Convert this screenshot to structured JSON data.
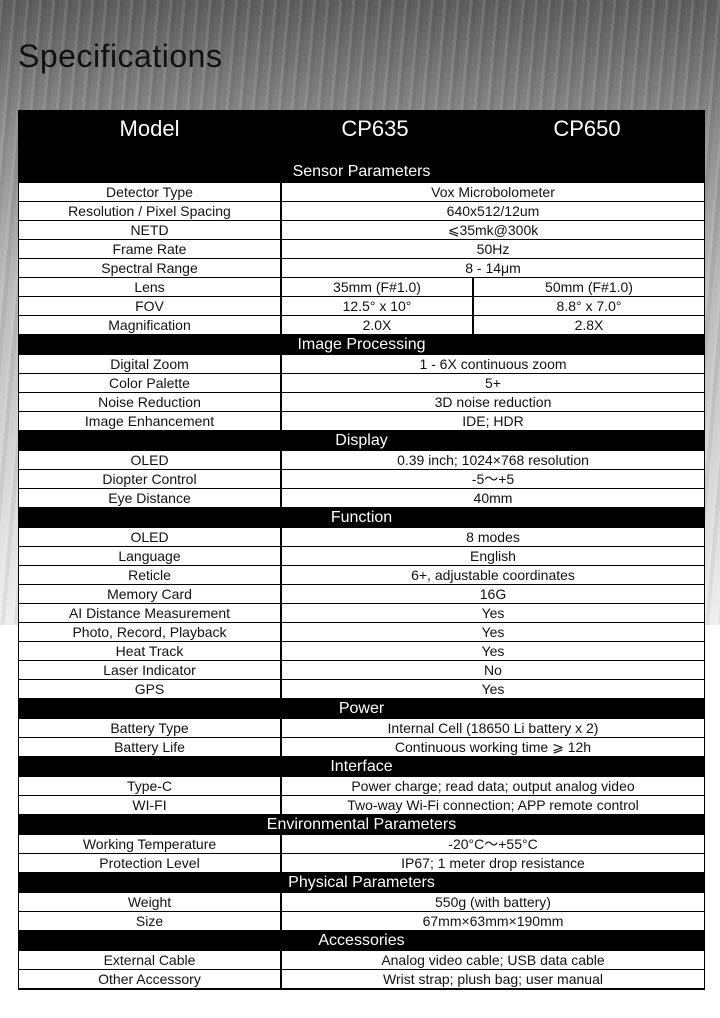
{
  "title": "Specifications",
  "header": {
    "model": "Model",
    "cp635": "CP635",
    "cp650": "CP650"
  },
  "sections": [
    {
      "title": "Sensor Parameters",
      "rows": [
        {
          "label": "Detector Type",
          "value": "Vox Microbolometer"
        },
        {
          "label": "Resolution / Pixel Spacing",
          "value": "640x512/12um"
        },
        {
          "label": "NETD",
          "value": "⩽35mk@300k"
        },
        {
          "label": "Frame Rate",
          "value": "50Hz"
        },
        {
          "label": "Spectral Range",
          "value": "8 - 14μm"
        },
        {
          "label": "Lens",
          "cp635": "35mm (F#1.0)",
          "cp650": "50mm (F#1.0)"
        },
        {
          "label": "FOV",
          "cp635": "12.5° x 10°",
          "cp650": "8.8° x 7.0°"
        },
        {
          "label": "Magnification",
          "cp635": "2.0X",
          "cp650": "2.8X"
        }
      ]
    },
    {
      "title": "Image Processing",
      "rows": [
        {
          "label": "Digital Zoom",
          "value": "1 - 6X continuous zoom"
        },
        {
          "label": "Color Palette",
          "value": "5+"
        },
        {
          "label": "Noise Reduction",
          "value": "3D noise reduction"
        },
        {
          "label": "Image Enhancement",
          "value": "IDE; HDR"
        }
      ]
    },
    {
      "title": "Display",
      "rows": [
        {
          "label": "OLED",
          "value": "0.39 inch; 1024×768 resolution"
        },
        {
          "label": "Diopter Control",
          "value": "-5～+5"
        },
        {
          "label": "Eye Distance",
          "value": "40mm"
        }
      ]
    },
    {
      "title": "Function",
      "rows": [
        {
          "label": "OLED",
          "value": "8 modes"
        },
        {
          "label": "Language",
          "value": "English"
        },
        {
          "label": "Reticle",
          "value": "6+, adjustable coordinates"
        },
        {
          "label": "Memory Card",
          "value": "16G"
        },
        {
          "label": "AI Distance Measurement",
          "value": "Yes"
        },
        {
          "label": "Photo, Record, Playback",
          "value": "Yes"
        },
        {
          "label": "Heat Track",
          "value": "Yes"
        },
        {
          "label": "Laser Indicator",
          "value": "No"
        },
        {
          "label": "GPS",
          "value": "Yes"
        }
      ]
    },
    {
      "title": "Power",
      "rows": [
        {
          "label": "Battery Type",
          "value": "Internal Cell (18650 Li battery x 2)"
        },
        {
          "label": "Battery Life",
          "value": "Continuous working time ⩾ 12h"
        }
      ]
    },
    {
      "title": "Interface",
      "rows": [
        {
          "label": "Type-C",
          "value": "Power charge; read data; output analog video"
        },
        {
          "label": "WI-FI",
          "value": "Two-way Wi-Fi connection; APP remote control"
        }
      ]
    },
    {
      "title": "Environmental Parameters",
      "rows": [
        {
          "label": "Working Temperature",
          "value": "-20°C～+55°C"
        },
        {
          "label": "Protection Level",
          "value": "IP67; 1 meter drop resistance"
        }
      ]
    },
    {
      "title": "Physical Parameters",
      "rows": [
        {
          "label": "Weight",
          "value": "550g (with battery)"
        },
        {
          "label": "Size",
          "value": "67mm×63mm×190mm"
        }
      ]
    },
    {
      "title": "Accessories",
      "rows": [
        {
          "label": "External Cable",
          "value": "Analog video cable; USB data cable"
        },
        {
          "label": "Other Accessory",
          "value": "Wrist strap; plush bag; user manual"
        }
      ]
    }
  ]
}
